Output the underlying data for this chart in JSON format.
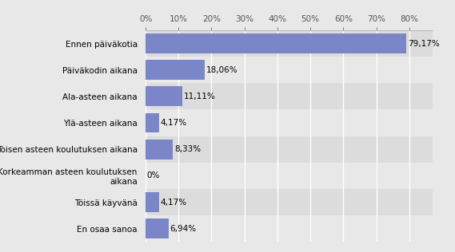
{
  "categories": [
    "En osaa sanoa",
    "Töissä käyvänä",
    "Korkeamman asteen koulutuksen\naikana",
    "Toisen asteen koulutuksen aikana",
    "Ylä-asteen aikana",
    "Ala-asteen aikana",
    "Päiväkodin aikana",
    "Ennen päiväkotia"
  ],
  "values": [
    6.94,
    4.17,
    0.0,
    8.33,
    4.17,
    11.11,
    18.06,
    79.17
  ],
  "labels": [
    "6,94%",
    "4,17%",
    "0%",
    "8,33%",
    "4,17%",
    "11,11%",
    "18,06%",
    "79,17%"
  ],
  "bar_color": "#7b86c8",
  "row_bg_odd": "#e8e8e8",
  "row_bg_even": "#dcdcdc",
  "plot_background": "#e8e8e8",
  "fig_background": "#e8e8e8",
  "grid_color": "#ffffff",
  "xlim": [
    0,
    87
  ],
  "xtick_values": [
    0,
    10,
    20,
    30,
    40,
    50,
    60,
    70,
    80
  ],
  "xtick_labels": [
    "0%",
    "10%",
    "20%",
    "30%",
    "40%",
    "50%",
    "60%",
    "70%",
    "80%"
  ],
  "label_fontsize": 7.5,
  "value_fontsize": 7.5,
  "tick_fontsize": 7.5
}
